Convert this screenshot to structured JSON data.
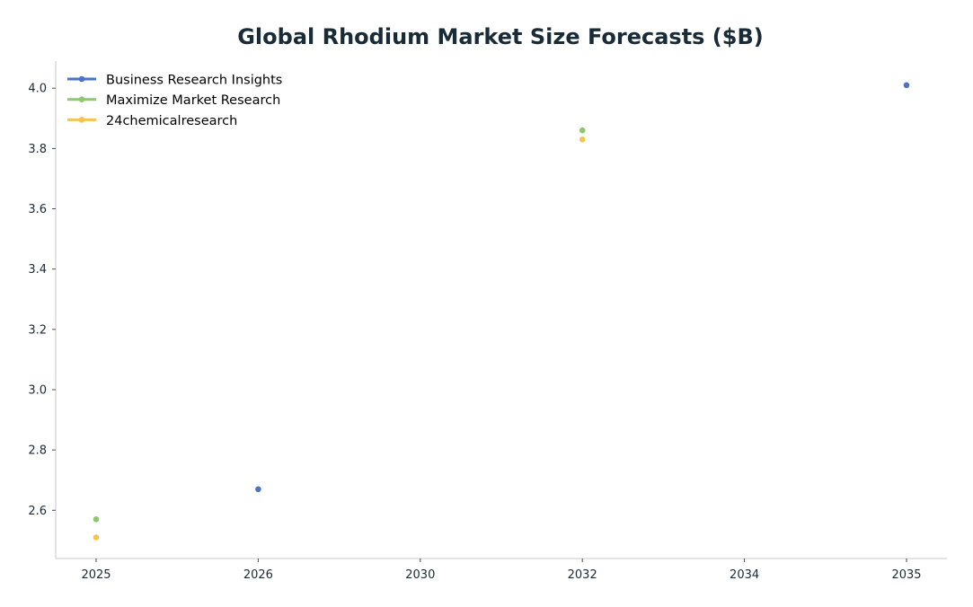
{
  "chart_data": {
    "type": "scatter",
    "title": "Global Rhodium Market Size Forecasts ($B)",
    "xlabel": "",
    "ylabel": "",
    "x_categories": [
      "2025",
      "2026",
      "2030",
      "2032",
      "2034",
      "2035"
    ],
    "y_ticks": [
      "2.6",
      "2.8",
      "3.0",
      "3.2",
      "3.4",
      "3.6",
      "3.8",
      "4.0"
    ],
    "ylim": [
      2.44,
      4.09
    ],
    "grid": false,
    "legend_position": "top-left",
    "series": [
      {
        "name": "Business Research Insights",
        "color": "#4c72c4",
        "points": [
          {
            "x": "2026",
            "y": 2.67
          },
          {
            "x": "2035",
            "y": 4.01
          }
        ]
      },
      {
        "name": "Maximize Market Research",
        "color": "#8cc96b",
        "points": [
          {
            "x": "2025",
            "y": 2.57
          },
          {
            "x": "2032",
            "y": 3.86
          }
        ]
      },
      {
        "name": "24chemicalresearch",
        "color": "#f5c452",
        "points": [
          {
            "x": "2025",
            "y": 2.51
          },
          {
            "x": "2032",
            "y": 3.83
          }
        ]
      }
    ]
  }
}
